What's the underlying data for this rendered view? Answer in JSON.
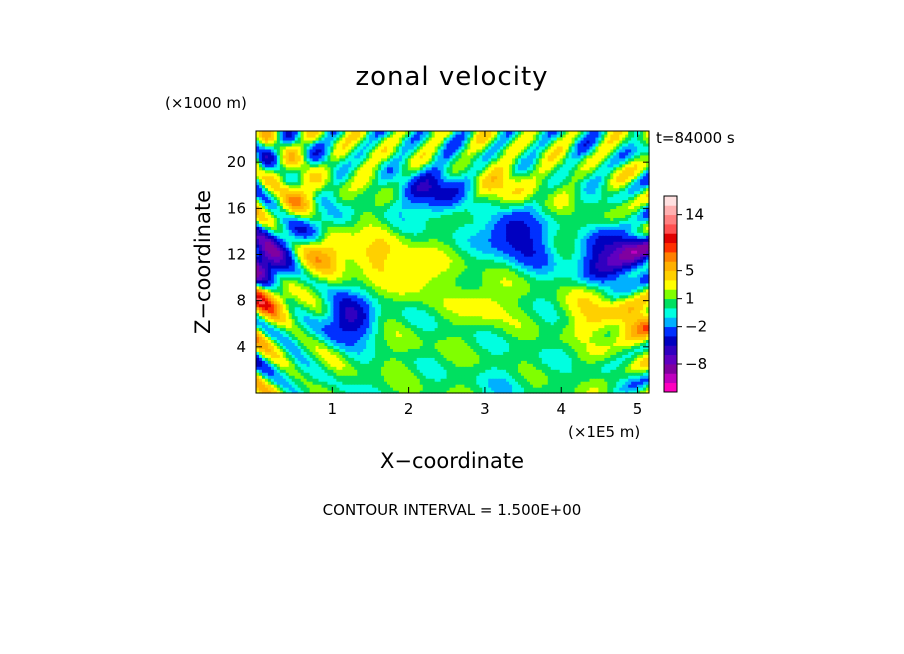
{
  "chart_data": {
    "type": "heatmap",
    "title": "zonal velocity",
    "xlabel": "X−coordinate",
    "ylabel": "Z−coordinate",
    "x_scale_label": "(×1E5 m)",
    "y_scale_label": "(×1000 m)",
    "time_label": "t=84000 s",
    "contour_interval_label": "CONTOUR INTERVAL = 1.500E+00",
    "xlim": [
      0,
      5.15
    ],
    "ylim": [
      0,
      22.7
    ],
    "x_ticks": [
      {
        "value": 1,
        "label": "1"
      },
      {
        "value": 2,
        "label": "2"
      },
      {
        "value": 3,
        "label": "3"
      },
      {
        "value": 4,
        "label": "4"
      },
      {
        "value": 5,
        "label": "5"
      }
    ],
    "y_ticks": [
      {
        "value": 4,
        "label": "4"
      },
      {
        "value": 8,
        "label": "8"
      },
      {
        "value": 12,
        "label": "12"
      },
      {
        "value": 16,
        "label": "16"
      },
      {
        "value": 20,
        "label": "20"
      }
    ],
    "colorbar": {
      "levels": [
        -12.5,
        -11,
        -9.5,
        -8,
        -6.5,
        -5,
        -3.5,
        -2,
        -1,
        0,
        1,
        2,
        3.5,
        5,
        6.5,
        8,
        9.5,
        11,
        12.5,
        14,
        15.5,
        17
      ],
      "colors": [
        "#ff00bf",
        "#bf00bf",
        "#8000a0",
        "#6000c0",
        "#3000c0",
        "#0000c0",
        "#0030ff",
        "#00b0ff",
        "#00ffe0",
        "#00e060",
        "#80ff00",
        "#ffff00",
        "#ffd000",
        "#ffb000",
        "#ff8000",
        "#ff3000",
        "#e00000",
        "#ff5050",
        "#ff8080",
        "#ffb0b0",
        "#ffe0e0"
      ],
      "tick_labels": [
        {
          "value": 14,
          "label": "14"
        },
        {
          "value": 5,
          "label": "5"
        },
        {
          "value": 1,
          "label": "1"
        },
        {
          "value": -2,
          "label": "−2"
        },
        {
          "value": -8,
          "label": "−8"
        }
      ]
    },
    "features": [
      {
        "x": 2.3,
        "z": 17.5,
        "value": -6
      },
      {
        "x": 3.3,
        "z": 14.2,
        "value": -5
      },
      {
        "x": 3.6,
        "z": 12.5,
        "value": -3
      },
      {
        "x": 4.5,
        "z": 11.5,
        "value": -5
      },
      {
        "x": 4.95,
        "z": 12.2,
        "value": -8
      },
      {
        "x": 0.08,
        "z": 11.5,
        "value": -10
      },
      {
        "x": 0.7,
        "z": 14.5,
        "value": -6
      },
      {
        "x": 1.2,
        "z": 6.5,
        "value": -6
      },
      {
        "x": 0.9,
        "z": 12.5,
        "value": 6
      },
      {
        "x": 0.55,
        "z": 16.5,
        "value": 5
      },
      {
        "x": 1.6,
        "z": 12,
        "value": 3
      },
      {
        "x": 2.1,
        "z": 10.5,
        "value": 3
      },
      {
        "x": 3.0,
        "z": 8,
        "value": 2.5
      },
      {
        "x": 4.4,
        "z": 7,
        "value": 3
      },
      {
        "x": 0.12,
        "z": 8,
        "value": 6
      },
      {
        "x": 5.0,
        "z": 6,
        "value": 5
      },
      {
        "x": 3.3,
        "z": 18,
        "value": 3
      },
      {
        "x": 2.0,
        "z": 4,
        "value": 0.5
      },
      {
        "x": 3.3,
        "z": 1,
        "value": -1
      },
      {
        "x": 1.7,
        "z": 20,
        "value": 0.5
      }
    ]
  }
}
